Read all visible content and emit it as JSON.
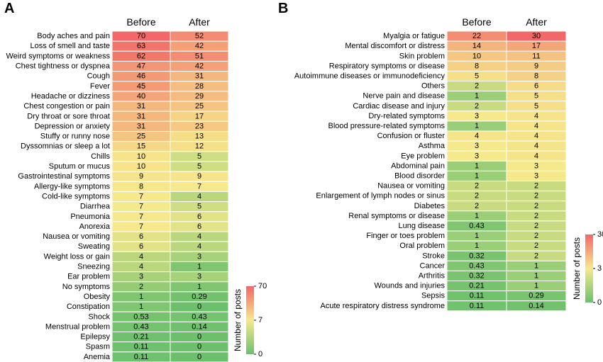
{
  "chart_data": [
    {
      "type": "heatmap",
      "panel_label": "A",
      "columns": [
        "Before",
        "After"
      ],
      "rows": [
        {
          "label": "Body aches and pain",
          "values": [
            70,
            52
          ]
        },
        {
          "label": "Loss of smell and taste",
          "values": [
            63,
            42
          ]
        },
        {
          "label": "Weird symptoms or weakness",
          "values": [
            62,
            51
          ]
        },
        {
          "label": "Chest tightness or dyspnea",
          "values": [
            47,
            42
          ]
        },
        {
          "label": "Cough",
          "values": [
            46,
            31
          ]
        },
        {
          "label": "Fever",
          "values": [
            45,
            28
          ]
        },
        {
          "label": "Headache or dizziness",
          "values": [
            40,
            29
          ]
        },
        {
          "label": "Chest congestion or pain",
          "values": [
            31,
            25
          ]
        },
        {
          "label": "Dry throat or sore throat",
          "values": [
            31,
            17
          ]
        },
        {
          "label": "Depression or anxiety",
          "values": [
            31,
            23
          ]
        },
        {
          "label": "Stuffy or runny nose",
          "values": [
            25,
            13
          ]
        },
        {
          "label": "Dyssomnias or sleep a lot",
          "values": [
            15,
            12
          ]
        },
        {
          "label": "Chills",
          "values": [
            10,
            5
          ]
        },
        {
          "label": "Sputum or mucus",
          "values": [
            10,
            5
          ]
        },
        {
          "label": "Gastrointestinal symptoms",
          "values": [
            9,
            9
          ]
        },
        {
          "label": "Allergy-like symptoms",
          "values": [
            8,
            7
          ]
        },
        {
          "label": "Cold-like symptoms",
          "values": [
            7,
            4
          ]
        },
        {
          "label": "Diarrhea",
          "values": [
            7,
            5
          ]
        },
        {
          "label": "Pneumonia",
          "values": [
            7,
            6
          ]
        },
        {
          "label": "Anorexia",
          "values": [
            7,
            6
          ]
        },
        {
          "label": "Nausea or vomiting",
          "values": [
            6,
            4
          ]
        },
        {
          "label": "Sweating",
          "values": [
            6,
            4
          ]
        },
        {
          "label": "Weight loss or gain",
          "values": [
            4,
            3
          ]
        },
        {
          "label": "Sneezing",
          "values": [
            4,
            1
          ]
        },
        {
          "label": "Ear problem",
          "values": [
            3,
            3
          ]
        },
        {
          "label": "No symptoms",
          "values": [
            2,
            1
          ]
        },
        {
          "label": "Obesity",
          "values": [
            1,
            0.29
          ]
        },
        {
          "label": "Constipation",
          "values": [
            1,
            0
          ]
        },
        {
          "label": "Shock",
          "values": [
            0.53,
            0.43
          ]
        },
        {
          "label": "Menstrual problem",
          "values": [
            0.43,
            0.14
          ]
        },
        {
          "label": "Epilepsy",
          "values": [
            0.21,
            0
          ]
        },
        {
          "label": "Spasm",
          "values": [
            0.11,
            0
          ]
        },
        {
          "label": "Anemia",
          "values": [
            0.11,
            0
          ]
        }
      ],
      "colorbar": {
        "label": "Number of posts",
        "ticks": [
          "70",
          "7",
          "0"
        ],
        "tick_values": [
          70,
          7,
          0
        ],
        "max": 70,
        "mid": 7,
        "min": 0
      }
    },
    {
      "type": "heatmap",
      "panel_label": "B",
      "columns": [
        "Before",
        "After"
      ],
      "rows": [
        {
          "label": "Myalgia or fatigue",
          "values": [
            22,
            30
          ]
        },
        {
          "label": "Mental discomfort or distress",
          "values": [
            14,
            17
          ]
        },
        {
          "label": "Skin problem",
          "values": [
            10,
            11
          ]
        },
        {
          "label": "Respiratory symptoms or disease",
          "values": [
            8,
            9
          ]
        },
        {
          "label": "Autoimmune diseases or immunodeficiency",
          "values": [
            5,
            8
          ]
        },
        {
          "label": "Others",
          "values": [
            2,
            6
          ]
        },
        {
          "label": "Nerve pain and disease",
          "values": [
            1,
            5
          ]
        },
        {
          "label": "Cardiac disease and injury",
          "values": [
            2,
            5
          ]
        },
        {
          "label": "Dry-related symptoms",
          "values": [
            3,
            4
          ]
        },
        {
          "label": "Blood pressure-related symptoms",
          "values": [
            1,
            4
          ]
        },
        {
          "label": "Confusion or fluster",
          "values": [
            4,
            4
          ]
        },
        {
          "label": "Asthma",
          "values": [
            3,
            4
          ]
        },
        {
          "label": "Eye problem",
          "values": [
            3,
            4
          ]
        },
        {
          "label": "Abdominal pain",
          "values": [
            1,
            3
          ]
        },
        {
          "label": "Blood disorder",
          "values": [
            1,
            3
          ]
        },
        {
          "label": "Nausea or vomiting",
          "values": [
            2,
            2
          ]
        },
        {
          "label": "Enlargement of lymph nodes or sinus",
          "values": [
            2,
            2
          ]
        },
        {
          "label": "Diabetes",
          "values": [
            2,
            2
          ]
        },
        {
          "label": "Renal symptoms or disease",
          "values": [
            1,
            2
          ]
        },
        {
          "label": "Lung disease",
          "values": [
            0.43,
            2
          ]
        },
        {
          "label": "Finger or toes problem",
          "values": [
            1,
            2
          ]
        },
        {
          "label": "Oral problem",
          "values": [
            1,
            2
          ]
        },
        {
          "label": "Stroke",
          "values": [
            0.32,
            2
          ]
        },
        {
          "label": "Cancer",
          "values": [
            0.43,
            1
          ]
        },
        {
          "label": "Arthritis",
          "values": [
            0.32,
            1
          ]
        },
        {
          "label": "Wounds and injuries",
          "values": [
            0.21,
            1
          ]
        },
        {
          "label": "Sepsis",
          "values": [
            0.11,
            0.29
          ]
        },
        {
          "label": "Acute respiratory distress syndrome",
          "values": [
            0.11,
            0.14
          ]
        }
      ],
      "colorbar": {
        "label": "Number of posts",
        "ticks": [
          "30",
          "3",
          "0"
        ],
        "tick_values": [
          30,
          3,
          0
        ],
        "max": 30,
        "mid": 3,
        "min": 0
      }
    }
  ],
  "colors": {
    "low": "#6cc06c",
    "mid": "#f6e98c",
    "high": "#f26767",
    "text": "#000000"
  }
}
